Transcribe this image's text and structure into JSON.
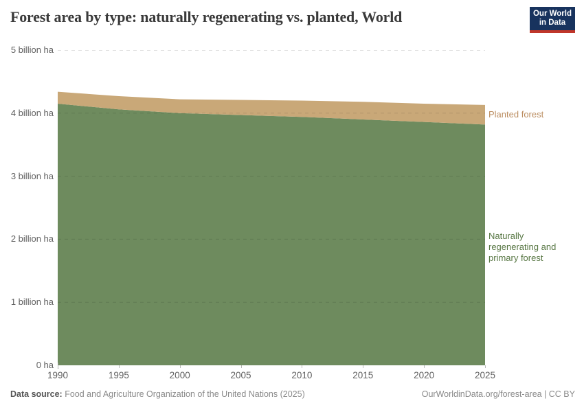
{
  "header": {
    "title": "Forest area by type: naturally regenerating vs. planted, World",
    "logo_line1": "Our World",
    "logo_line2": "in Data"
  },
  "colors": {
    "natural_area": "#6e8b5e",
    "planted_area": "#c9a878",
    "natural_label_text": "#587744",
    "planted_label_text": "#bb8d60",
    "logo_background": "#18335e",
    "logo_stripe": "#c0362a",
    "gridline": "rgba(0,0,0,0.11)"
  },
  "chart_data": {
    "type": "area",
    "stacked": true,
    "title": "Forest area by type: naturally regenerating vs. planted, World",
    "unit": "billion ha",
    "x": [
      1990,
      1995,
      2000,
      2005,
      2010,
      2015,
      2020,
      2025
    ],
    "xlim": [
      1990,
      2025
    ],
    "ylim": [
      0,
      5
    ],
    "grid": "horizontal-dashed",
    "legend_position": "right-of-plot",
    "series": [
      {
        "name": "Naturally regenerating and primary forest",
        "color": "#6e8b5e",
        "label_color": "#587744",
        "values": [
          4.15,
          4.06,
          4.0,
          3.97,
          3.94,
          3.9,
          3.86,
          3.82
        ]
      },
      {
        "name": "Planted forest",
        "color": "#c9a878",
        "label_color": "#bb8d60",
        "values": [
          0.19,
          0.21,
          0.22,
          0.24,
          0.26,
          0.28,
          0.29,
          0.31
        ]
      }
    ],
    "y_ticks": [
      {
        "value": 0,
        "label": "0 ha"
      },
      {
        "value": 1,
        "label": "1 billion ha"
      },
      {
        "value": 2,
        "label": "2 billion ha"
      },
      {
        "value": 3,
        "label": "3 billion ha"
      },
      {
        "value": 4,
        "label": "4 billion ha"
      },
      {
        "value": 5,
        "label": "5 billion ha"
      }
    ],
    "x_ticks": [
      1990,
      1995,
      2000,
      2005,
      2010,
      2015,
      2020,
      2025
    ]
  },
  "footer": {
    "source_label": "Data source:",
    "source_text": "Food and Agriculture Organization of the United Nations (2025)",
    "credit": "OurWorldinData.org/forest-area | CC BY"
  }
}
